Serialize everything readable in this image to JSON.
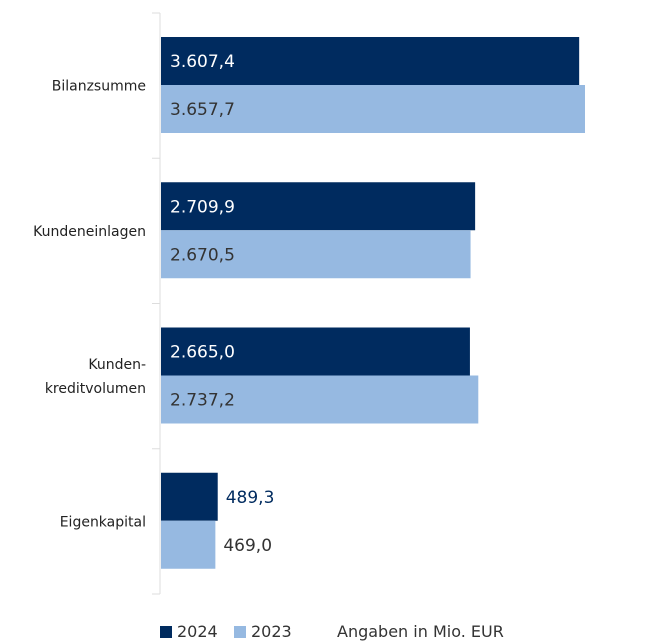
{
  "chart_data": {
    "type": "bar",
    "orientation": "horizontal",
    "categories": [
      [
        "Bilanzsumme"
      ],
      [
        "Kundeneinlagen"
      ],
      [
        "Kunden-",
        "kreditvolumen"
      ],
      [
        "Eigenkapital"
      ]
    ],
    "series": [
      {
        "name": "2024",
        "color": "#002b5f",
        "values": [
          3607.4,
          2709.9,
          2665.0,
          489.3
        ],
        "labels": [
          "3.607,4",
          "2.709,9",
          "2.665,0",
          "489,3"
        ]
      },
      {
        "name": "2023",
        "color": "#96b9e1",
        "values": [
          3657.7,
          2670.5,
          2737.2,
          469.0
        ],
        "labels": [
          "3.657,7",
          "2.670,5",
          "2.737,2",
          "469,0"
        ]
      }
    ],
    "xlim": [
      0,
      3657.7
    ],
    "note": "Angaben in Mio. EUR",
    "legend_position": "bottom-left",
    "grid": false
  }
}
